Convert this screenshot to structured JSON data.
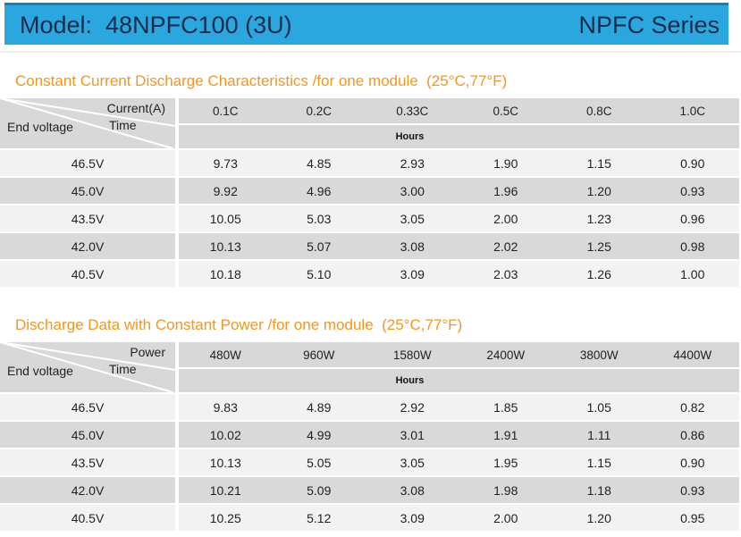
{
  "header": {
    "model_label": "Model:  48NPFC100 (3U)",
    "series_label": "NPFC Series"
  },
  "tables": [
    {
      "title": "Constant Current Discharge Characteristics /for one module  (25°C,77°F)",
      "corner": {
        "top": "Current(A)",
        "middle": "Time",
        "bottom": "End voltage"
      },
      "unit_row": "Hours",
      "columns": [
        "0.1C",
        "0.2C",
        "0.33C",
        "0.5C",
        "0.8C",
        "1.0C"
      ],
      "rows": [
        {
          "end_voltage": "46.5V",
          "values": [
            "9.73",
            "4.85",
            "2.93",
            "1.90",
            "1.15",
            "0.90"
          ]
        },
        {
          "end_voltage": "45.0V",
          "values": [
            "9.92",
            "4.96",
            "3.00",
            "1.96",
            "1.20",
            "0.93"
          ]
        },
        {
          "end_voltage": "43.5V",
          "values": [
            "10.05",
            "5.03",
            "3.05",
            "2.00",
            "1.23",
            "0.96"
          ]
        },
        {
          "end_voltage": "42.0V",
          "values": [
            "10.13",
            "5.07",
            "3.08",
            "2.02",
            "1.25",
            "0.98"
          ]
        },
        {
          "end_voltage": "40.5V",
          "values": [
            "10.18",
            "5.10",
            "3.09",
            "2.03",
            "1.26",
            "1.00"
          ]
        }
      ]
    },
    {
      "title": "Discharge Data with Constant Power /for one module  (25°C,77°F)",
      "corner": {
        "top": "Power",
        "middle": "Time",
        "bottom": "End voltage"
      },
      "unit_row": "Hours",
      "columns": [
        "480W",
        "960W",
        "1580W",
        "2400W",
        "3800W",
        "4400W"
      ],
      "rows": [
        {
          "end_voltage": "46.5V",
          "values": [
            "9.83",
            "4.89",
            "2.92",
            "1.85",
            "1.05",
            "0.82"
          ]
        },
        {
          "end_voltage": "45.0V",
          "values": [
            "10.02",
            "4.99",
            "3.01",
            "1.91",
            "1.11",
            "0.86"
          ]
        },
        {
          "end_voltage": "43.5V",
          "values": [
            "10.13",
            "5.05",
            "3.05",
            "1.95",
            "1.15",
            "0.90"
          ]
        },
        {
          "end_voltage": "42.0V",
          "values": [
            "10.21",
            "5.09",
            "3.08",
            "1.98",
            "1.18",
            "0.93"
          ]
        },
        {
          "end_voltage": "40.5V",
          "values": [
            "10.25",
            "5.12",
            "3.09",
            "2.00",
            "1.20",
            "0.95"
          ]
        }
      ]
    }
  ],
  "colors": {
    "header_bar": "#2aa7df",
    "header_bar_top_edge": "#1480b6",
    "header_text": "#1b2b4a",
    "section_title": "#f2961d",
    "table_header_bg": "#d8d8d8",
    "row_shade_bg": "#d9d9d9",
    "row_light_bg": "#f2f2f2"
  }
}
